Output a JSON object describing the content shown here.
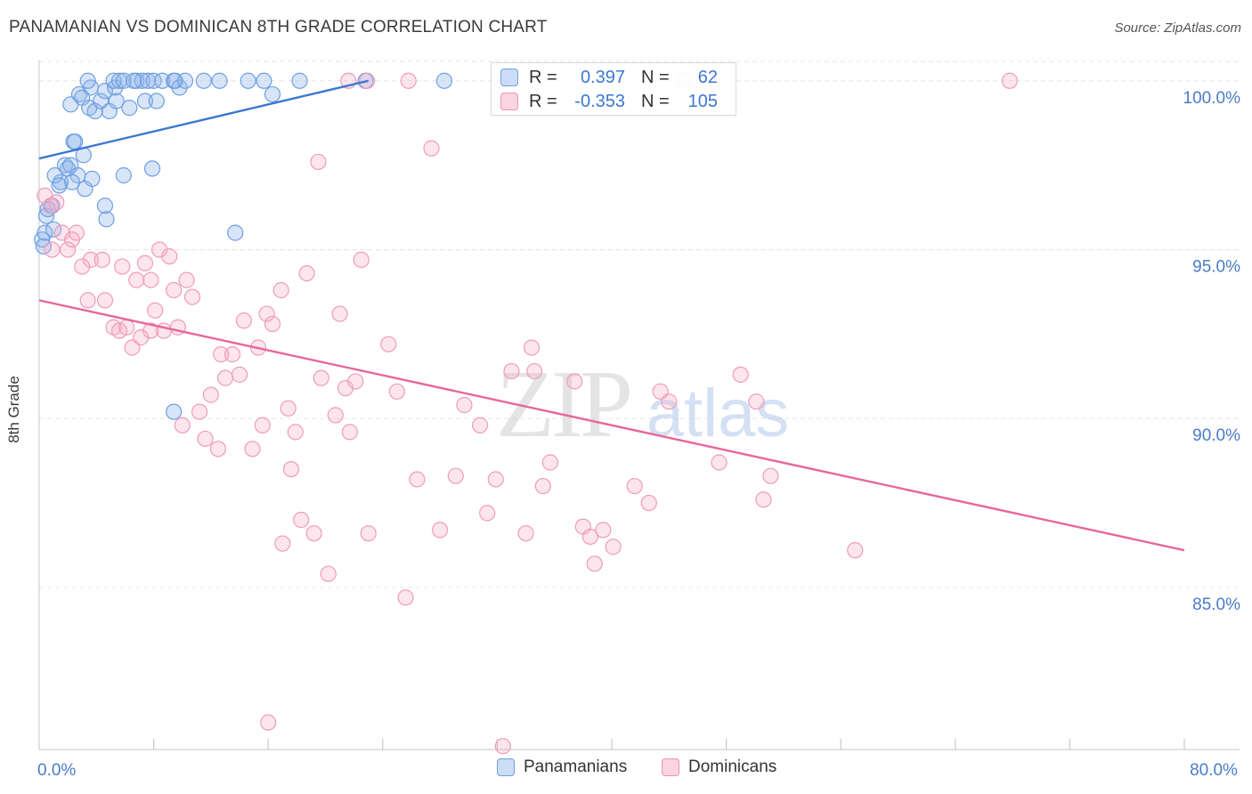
{
  "title": "PANAMANIAN VS DOMINICAN 8TH GRADE CORRELATION CHART",
  "source": "Source: ZipAtlas.com",
  "watermark": {
    "zip": "ZIP",
    "atlas": "atlas"
  },
  "colors": {
    "blue": "#3c78d0",
    "blue_fill": "rgba(143,180,234,0.35)",
    "pink": "#e8679a",
    "pink_fill": "rgba(244,170,196,0.30)",
    "grid": "#e6e6e6",
    "axis_text": "#4a7cc9"
  },
  "legend_stats": {
    "panamanians": {
      "r_label": "R =",
      "r_value": "0.397",
      "n_label": "N =",
      "n_value": "62"
    },
    "dominicans": {
      "r_label": "R =",
      "r_value": "-0.353",
      "n_label": "N =",
      "n_value": "105"
    }
  },
  "chart_data": {
    "type": "scatter",
    "title": "PANAMANIAN VS DOMINICAN 8TH GRADE CORRELATION CHART",
    "xlabel": "",
    "ylabel": "8th Grade",
    "xlim": [
      0,
      80
    ],
    "ylim": [
      80.2,
      100.6
    ],
    "x_tick_labels": [
      {
        "value": 0,
        "label": "0.0%"
      },
      {
        "value": 80,
        "label": "80.0%"
      }
    ],
    "y_tick_labels": [
      {
        "value": 100,
        "label": "100.0%"
      },
      {
        "value": 95,
        "label": "95.0%"
      },
      {
        "value": 90,
        "label": "90.0%"
      },
      {
        "value": 85,
        "label": "85.0%"
      }
    ],
    "x_minor_ticks": [
      8,
      16,
      24,
      32,
      40,
      48,
      56,
      64,
      72,
      80
    ],
    "legend_position": "bottom-center",
    "series": [
      {
        "name": "Panamanians",
        "color": "#3c78d0",
        "trend": {
          "x": [
            0,
            23
          ],
          "y": [
            97.7,
            100.0
          ]
        },
        "points": [
          [
            0.2,
            95.3
          ],
          [
            0.3,
            95.1
          ],
          [
            0.4,
            95.5
          ],
          [
            0.5,
            96.0
          ],
          [
            0.6,
            96.2
          ],
          [
            0.9,
            96.3
          ],
          [
            1.0,
            95.6
          ],
          [
            1.5,
            97.0
          ],
          [
            1.1,
            97.2
          ],
          [
            1.8,
            97.5
          ],
          [
            2.0,
            97.4
          ],
          [
            2.2,
            97.5
          ],
          [
            2.7,
            97.2
          ],
          [
            2.3,
            97.0
          ],
          [
            3.2,
            96.8
          ],
          [
            2.4,
            98.2
          ],
          [
            3.1,
            97.8
          ],
          [
            2.5,
            98.2
          ],
          [
            2.8,
            99.6
          ],
          [
            3.0,
            99.5
          ],
          [
            3.5,
            99.2
          ],
          [
            3.6,
            99.8
          ],
          [
            3.4,
            100.0
          ],
          [
            3.9,
            99.1
          ],
          [
            4.3,
            99.4
          ],
          [
            4.6,
            99.7
          ],
          [
            4.9,
            99.1
          ],
          [
            5.4,
            99.4
          ],
          [
            5.3,
            99.8
          ],
          [
            5.2,
            100.0
          ],
          [
            5.6,
            100.0
          ],
          [
            5.9,
            100.0
          ],
          [
            6.3,
            99.2
          ],
          [
            6.8,
            100.0
          ],
          [
            7.2,
            100.0
          ],
          [
            7.4,
            99.4
          ],
          [
            7.6,
            100.0
          ],
          [
            8.0,
            100.0
          ],
          [
            8.2,
            99.4
          ],
          [
            8.6,
            100.0
          ],
          [
            9.4,
            100.0
          ],
          [
            9.8,
            99.8
          ],
          [
            9.5,
            100.0
          ],
          [
            10.2,
            100.0
          ],
          [
            11.5,
            100.0
          ],
          [
            12.6,
            100.0
          ],
          [
            14.6,
            100.0
          ],
          [
            15.7,
            100.0
          ],
          [
            16.3,
            99.6
          ],
          [
            18.2,
            100.0
          ],
          [
            22.8,
            100.0
          ],
          [
            28.3,
            100.0
          ],
          [
            4.6,
            96.3
          ],
          [
            4.7,
            95.9
          ],
          [
            5.9,
            97.2
          ],
          [
            7.9,
            97.4
          ],
          [
            13.7,
            95.5
          ],
          [
            9.4,
            90.2
          ],
          [
            1.4,
            96.9
          ],
          [
            3.7,
            97.1
          ],
          [
            6.6,
            100.0
          ],
          [
            2.2,
            99.3
          ]
        ]
      },
      {
        "name": "Dominicans",
        "color": "#e8679a",
        "trend": {
          "x": [
            0,
            80
          ],
          "y": [
            93.5,
            86.1
          ]
        },
        "points": [
          [
            0.4,
            96.6
          ],
          [
            0.8,
            96.3
          ],
          [
            1.2,
            96.4
          ],
          [
            1.6,
            95.5
          ],
          [
            0.9,
            95.0
          ],
          [
            2.0,
            95.0
          ],
          [
            2.3,
            95.3
          ],
          [
            2.6,
            95.5
          ],
          [
            3.0,
            94.5
          ],
          [
            3.6,
            94.7
          ],
          [
            4.4,
            94.7
          ],
          [
            3.4,
            93.5
          ],
          [
            4.6,
            93.5
          ],
          [
            5.2,
            92.7
          ],
          [
            5.6,
            92.6
          ],
          [
            6.1,
            92.7
          ],
          [
            5.8,
            94.5
          ],
          [
            6.5,
            92.1
          ],
          [
            6.8,
            94.1
          ],
          [
            7.1,
            92.4
          ],
          [
            7.4,
            94.6
          ],
          [
            7.8,
            94.1
          ],
          [
            8.1,
            93.2
          ],
          [
            8.4,
            95.0
          ],
          [
            8.7,
            92.6
          ],
          [
            9.1,
            94.8
          ],
          [
            9.4,
            93.8
          ],
          [
            9.7,
            92.7
          ],
          [
            10.3,
            94.1
          ],
          [
            10.7,
            93.6
          ],
          [
            11.2,
            90.2
          ],
          [
            11.6,
            89.4
          ],
          [
            12.0,
            90.7
          ],
          [
            12.5,
            89.1
          ],
          [
            12.7,
            91.9
          ],
          [
            13.0,
            91.2
          ],
          [
            13.5,
            91.9
          ],
          [
            14.0,
            91.3
          ],
          [
            14.3,
            92.9
          ],
          [
            14.9,
            89.1
          ],
          [
            15.3,
            92.1
          ],
          [
            15.6,
            89.8
          ],
          [
            15.9,
            93.1
          ],
          [
            16.3,
            92.8
          ],
          [
            16.9,
            93.8
          ],
          [
            17.4,
            90.3
          ],
          [
            17.6,
            88.5
          ],
          [
            17.9,
            89.6
          ],
          [
            18.3,
            87.0
          ],
          [
            18.7,
            94.3
          ],
          [
            19.2,
            86.6
          ],
          [
            19.7,
            91.2
          ],
          [
            20.2,
            85.4
          ],
          [
            20.7,
            90.1
          ],
          [
            21.0,
            93.1
          ],
          [
            21.4,
            90.9
          ],
          [
            21.7,
            89.6
          ],
          [
            22.1,
            91.1
          ],
          [
            22.5,
            94.7
          ],
          [
            23.0,
            86.6
          ],
          [
            24.4,
            92.2
          ],
          [
            25.0,
            90.8
          ],
          [
            25.6,
            84.7
          ],
          [
            26.4,
            88.2
          ],
          [
            27.4,
            98.0
          ],
          [
            28.0,
            86.7
          ],
          [
            29.1,
            88.3
          ],
          [
            29.7,
            90.4
          ],
          [
            30.8,
            89.8
          ],
          [
            31.3,
            87.2
          ],
          [
            31.9,
            88.2
          ],
          [
            32.4,
            80.3
          ],
          [
            33.0,
            91.4
          ],
          [
            34.0,
            86.6
          ],
          [
            34.4,
            92.1
          ],
          [
            34.6,
            91.4
          ],
          [
            35.2,
            88.0
          ],
          [
            35.7,
            88.7
          ],
          [
            37.4,
            91.1
          ],
          [
            38.0,
            86.8
          ],
          [
            38.5,
            86.5
          ],
          [
            38.8,
            85.7
          ],
          [
            39.4,
            86.7
          ],
          [
            40.1,
            86.2
          ],
          [
            41.6,
            88.0
          ],
          [
            42.6,
            87.5
          ],
          [
            43.4,
            90.8
          ],
          [
            44.0,
            90.5
          ],
          [
            45.1,
            100.0
          ],
          [
            47.5,
            88.7
          ],
          [
            49.0,
            91.3
          ],
          [
            50.1,
            90.5
          ],
          [
            50.6,
            87.6
          ],
          [
            51.1,
            88.3
          ],
          [
            57.0,
            86.1
          ],
          [
            10.0,
            89.8
          ],
          [
            16.0,
            81.0
          ],
          [
            19.5,
            97.6
          ],
          [
            21.6,
            100.0
          ],
          [
            25.8,
            100.0
          ],
          [
            32.2,
            100.0
          ],
          [
            67.8,
            100.0
          ],
          [
            22.9,
            100.0
          ],
          [
            7.8,
            92.6
          ],
          [
            17.0,
            86.3
          ]
        ]
      }
    ]
  }
}
